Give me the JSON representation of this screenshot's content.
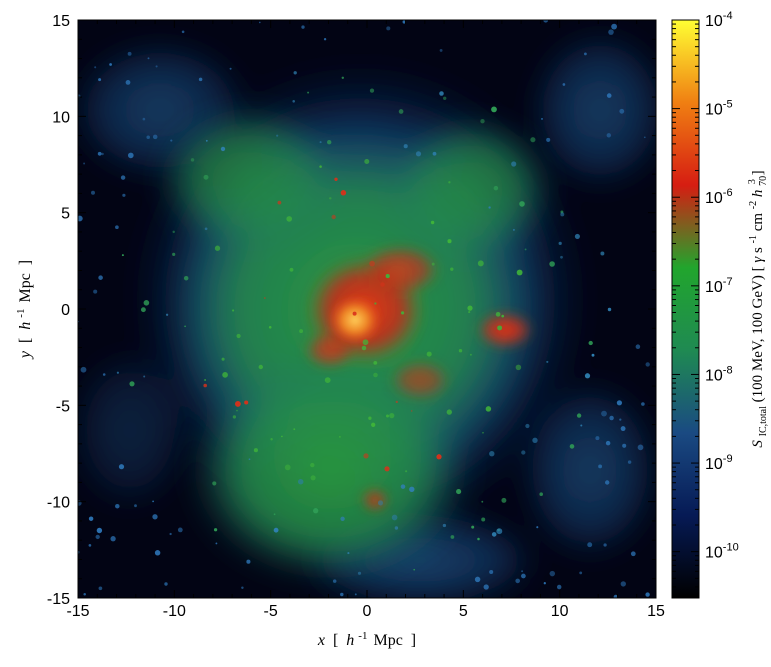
{
  "chart_data": {
    "type": "heatmap",
    "title": "",
    "xlabel": {
      "var": "x",
      "open": "[",
      "h": "h",
      "exp": "-1",
      "unit": "Mpc",
      "close": "]"
    },
    "ylabel": {
      "var": "y",
      "open": "[",
      "h": "h",
      "exp": "-1",
      "unit": "Mpc",
      "close": "]"
    },
    "xlim": [
      -15,
      15
    ],
    "ylim": [
      -15,
      15
    ],
    "x_ticks": [
      -15,
      -10,
      -5,
      0,
      5,
      10,
      15
    ],
    "y_ticks": [
      -15,
      -10,
      -5,
      0,
      5,
      10,
      15
    ],
    "x_tick_labels": [
      "-15",
      "-10",
      "-5",
      "0",
      "5",
      "10",
      "15"
    ],
    "y_tick_labels": [
      "-15",
      "-10",
      "-5",
      "0",
      "5",
      "10",
      "15"
    ],
    "colorbar": {
      "scale": "log",
      "range": [
        3e-11,
        0.0001
      ],
      "tick_values": [
        1e-10,
        1e-09,
        1e-08,
        1e-07,
        1e-06,
        1e-05,
        0.0001
      ],
      "tick_labels": [
        {
          "base": "10",
          "exp": "-10"
        },
        {
          "base": "10",
          "exp": "-9"
        },
        {
          "base": "10",
          "exp": "-8"
        },
        {
          "base": "10",
          "exp": "-7"
        },
        {
          "base": "10",
          "exp": "-6"
        },
        {
          "base": "10",
          "exp": "-5"
        },
        {
          "base": "10",
          "exp": "-4"
        }
      ],
      "label": {
        "sym": "S",
        "sub": "IC,total",
        "range": " (100 MeV, 100 GeV) [ ",
        "gamma": "γ",
        "s": " s",
        "s_exp": "-1",
        "cm": " cm",
        "cm_exp": "-2",
        "h": " h",
        "h_sub": "70",
        "h_sup": "3",
        "close": " ]"
      },
      "colors": [
        "#000000",
        "#061a55",
        "#1a4a82",
        "#1f8a52",
        "#21a52d",
        "#d61d12",
        "#f07f12",
        "#ffff33"
      ]
    },
    "map_description_points": [
      {
        "x": 0.5,
        "y": -1.0,
        "value": 2e-06
      },
      {
        "x": 1.5,
        "y": 1.5,
        "value": 2e-07
      },
      {
        "x": 7.0,
        "y": -1.5,
        "value": 1.5e-07
      },
      {
        "x": 0.5,
        "y": -10.0,
        "value": 2e-07
      }
    ],
    "grid": false,
    "legend": "none"
  }
}
